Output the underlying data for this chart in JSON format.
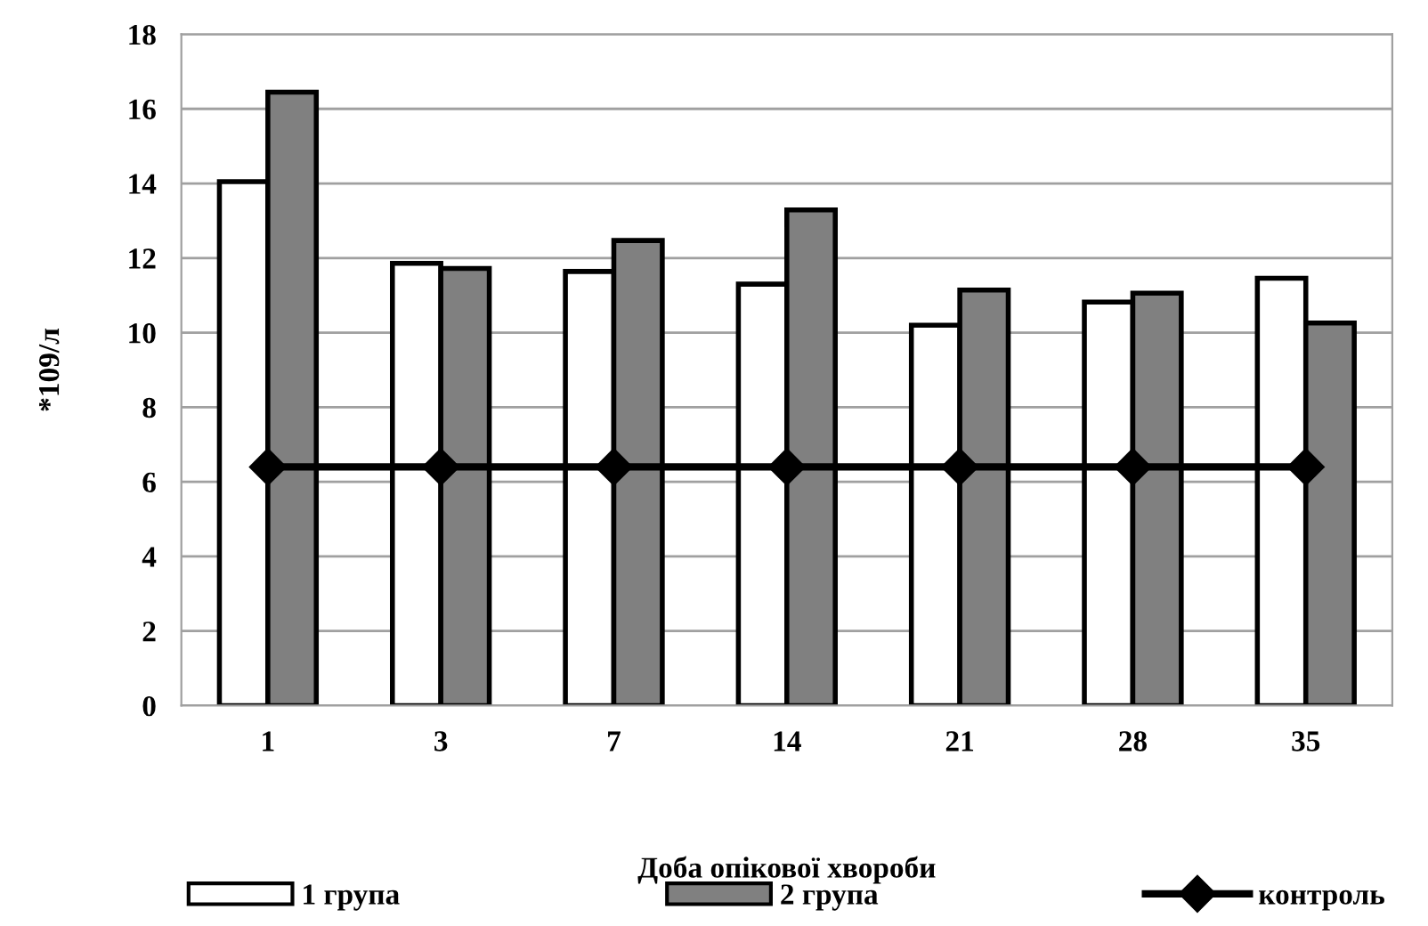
{
  "chart_data": {
    "type": "bar",
    "xlabel": "Доба опікової хвороби",
    "ylabel": "*109/л",
    "categories": [
      "1",
      "3",
      "7",
      "14",
      "21",
      "28",
      "35"
    ],
    "series": [
      {
        "name": "1 група",
        "color": "#ffffff",
        "values": [
          14.05,
          11.86,
          11.64,
          11.3,
          10.2,
          10.82,
          11.46
        ]
      },
      {
        "name": "2 група",
        "color": "#808080",
        "values": [
          16.45,
          11.72,
          12.47,
          13.29,
          11.14,
          11.06,
          10.26
        ]
      },
      {
        "name": "контроль",
        "type": "line",
        "color": "#000000",
        "marker": "diamond",
        "values": [
          6.4,
          6.4,
          6.4,
          6.4,
          6.4,
          6.4,
          6.4
        ]
      }
    ],
    "ylim": [
      0,
      18
    ],
    "yticks": [
      0,
      2,
      4,
      6,
      8,
      10,
      12,
      14,
      16,
      18
    ],
    "grid": "y",
    "legend": "bottom"
  }
}
